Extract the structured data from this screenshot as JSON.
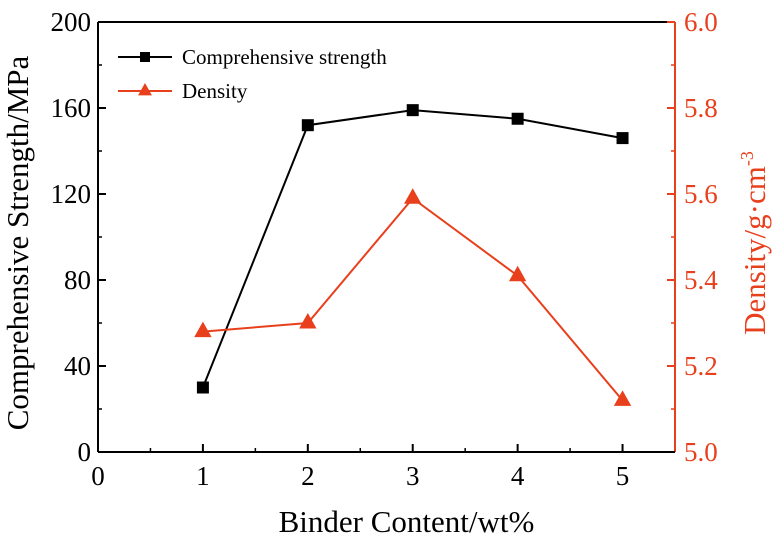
{
  "chart_data": {
    "type": "line",
    "x": [
      1,
      2,
      3,
      4,
      5
    ],
    "xlabel": "Binder Content/wt%",
    "xlim": [
      0,
      5.5
    ],
    "xticks": [
      0,
      1,
      2,
      3,
      4,
      5
    ],
    "ylabel_left": "Comprehensive Strength/MPa",
    "ylim_left": [
      0,
      200
    ],
    "yticks_left": [
      0,
      40,
      80,
      120,
      160,
      200
    ],
    "ylabel_right": "Density/g·cm",
    "ylabel_right_superscript": "-3",
    "ylim_right": [
      5.0,
      6.0
    ],
    "yticks_right": [
      "5.0",
      "5.2",
      "5.4",
      "5.6",
      "5.8",
      "6.0"
    ],
    "series": [
      {
        "name": "Comprehensive strength",
        "axis": "left",
        "marker": "square",
        "color": "#000000",
        "values": [
          30,
          152,
          159,
          155,
          146
        ]
      },
      {
        "name": "Density",
        "axis": "right",
        "marker": "triangle",
        "color": "#e8401c",
        "values": [
          5.28,
          5.3,
          5.59,
          5.41,
          5.12
        ]
      }
    ],
    "legend_position": "top-left",
    "grid": false
  }
}
